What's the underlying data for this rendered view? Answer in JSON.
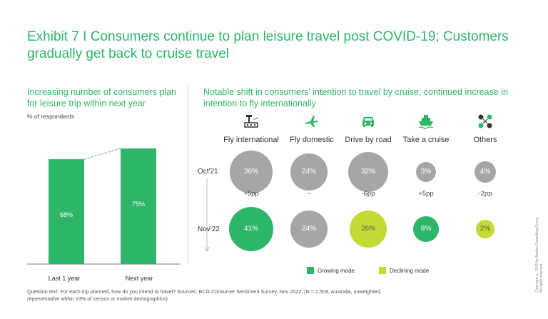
{
  "title": "Exhibit 7 I Consumers continue to plan leisure travel post COVID-19; Customers gradually get back to cruise travel",
  "left_panel": {
    "subtitle": "Increasing number of consumers plan for leisure trip within next year",
    "unit": "% of respondents"
  },
  "right_panel": {
    "subtitle": "Notable shift in consumers' intention to travel by cruise; continued increase in intention to fly internationally"
  },
  "footnote": "Question text: For each trip planned, how do you intend to travel? Sources: BCG Consumer Sentiment Survey, Nov 2022, (N = 2,509, Australia, unweighted, representative within ±3% of census or market demographics)",
  "copyright": "Copyright © 2019 by Boston Consulting Group. All rights reserved.",
  "legend": {
    "growing": "Growing mode",
    "declining": "Declining mode"
  },
  "colors": {
    "green": "#2db56a",
    "yellow_green": "#c5d935",
    "gray": "#a6a6a6"
  },
  "chart_data": [
    {
      "type": "bar",
      "categories": [
        "Last 1 year",
        "Next year"
      ],
      "values": [
        68,
        75
      ],
      "value_labels": [
        "68%",
        "75%"
      ],
      "ylim": [
        0,
        100
      ]
    },
    {
      "type": "scatter",
      "categories": [
        "Fly international",
        "Fly domestic",
        "Drive by road",
        "Take a cruise",
        "Others"
      ],
      "icons": [
        "airport-icon",
        "plane-icon",
        "car-icon",
        "ship-icon",
        "others-icon"
      ],
      "series": [
        {
          "name": "Oct'21",
          "values": [
            36,
            24,
            32,
            3,
            4
          ],
          "labels": [
            "36%",
            "24%",
            "32%",
            "3%",
            "4%"
          ],
          "mode": [
            "neutral",
            "neutral",
            "neutral",
            "neutral",
            "neutral"
          ]
        },
        {
          "name": "Nov'22",
          "values": [
            41,
            24,
            26,
            8,
            2
          ],
          "labels": [
            "41%",
            "24%",
            "26%",
            "8%",
            "2%"
          ],
          "mode": [
            "growing",
            "neutral",
            "declining",
            "growing",
            "declining"
          ]
        }
      ],
      "changes": [
        "+5pp",
        "~",
        "-6pp",
        "+5pp",
        "-2pp"
      ]
    }
  ]
}
